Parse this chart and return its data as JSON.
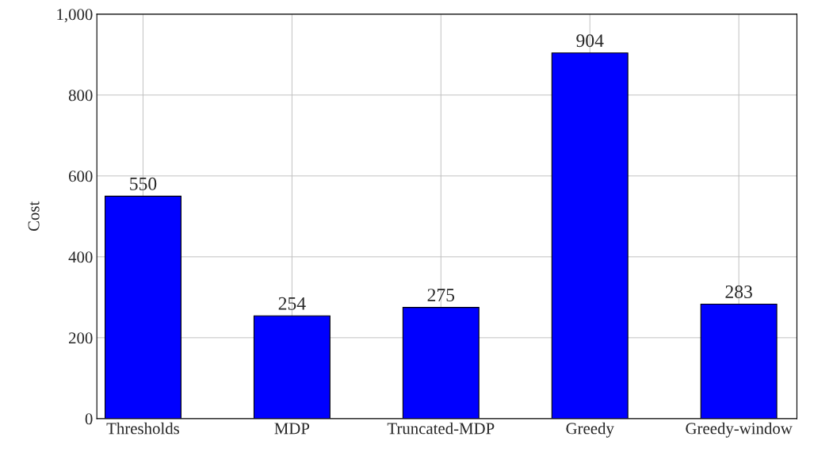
{
  "chart_data": {
    "type": "bar",
    "ylabel": "Cost",
    "categories": [
      "Thresholds",
      "MDP",
      "Truncated-MDP",
      "Greedy",
      "Greedy-window"
    ],
    "values": [
      550,
      254,
      275,
      904,
      283
    ],
    "color": "#0000ff",
    "ylim": [
      0,
      1000
    ],
    "yticks": [
      0,
      {
        "value": 200,
        "label": "200"
      },
      {
        "value": 400,
        "label": "400"
      },
      {
        "value": 600,
        "label": "600"
      },
      {
        "value": 800,
        "label": "800"
      },
      {
        "value": 1000,
        "label": "1,000"
      }
    ],
    "grid": true,
    "data_labels": true
  }
}
